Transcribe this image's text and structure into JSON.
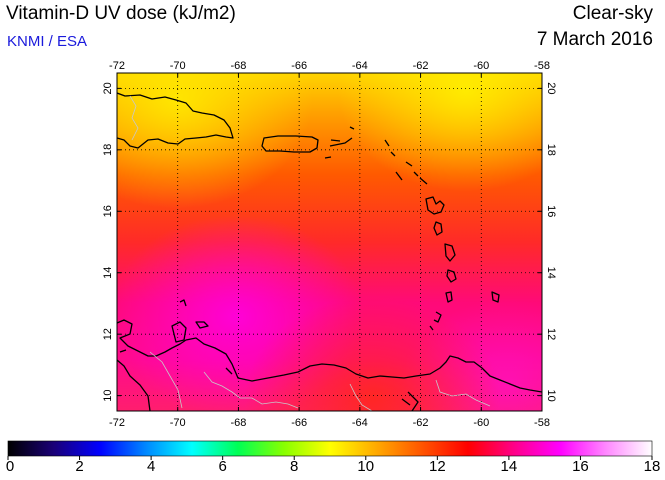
{
  "header": {
    "title": "Vitamin-D UV dose (kJ/m2)",
    "credit": "KNMI / ESA",
    "condition": "Clear-sky",
    "date": "7 March 2016"
  },
  "map": {
    "lon_ticks": [
      "-72",
      "-70",
      "-68",
      "-66",
      "-64",
      "-62",
      "-60",
      "-58"
    ],
    "lat_ticks": [
      "10",
      "12",
      "14",
      "16",
      "18",
      "20"
    ],
    "lon_range": [
      -72,
      -58
    ],
    "lat_range": [
      9.5,
      20.5
    ],
    "grid": "dotted",
    "colors": {
      "coastline": "#000000",
      "borders": "#c8c8c8"
    }
  },
  "colorbar": {
    "labels": [
      "0",
      "2",
      "4",
      "6",
      "8",
      "10",
      "12",
      "14",
      "16",
      "18"
    ],
    "range": [
      0,
      18
    ],
    "stops": [
      "#000000",
      "#1a0078",
      "#0000ff",
      "#0088ff",
      "#00ffff",
      "#00ff55",
      "#88ff00",
      "#ffff00",
      "#ffaa00",
      "#ff5500",
      "#ff0000",
      "#ff0088",
      "#ff00ff",
      "#ff88ff",
      "#ffffff"
    ]
  }
}
